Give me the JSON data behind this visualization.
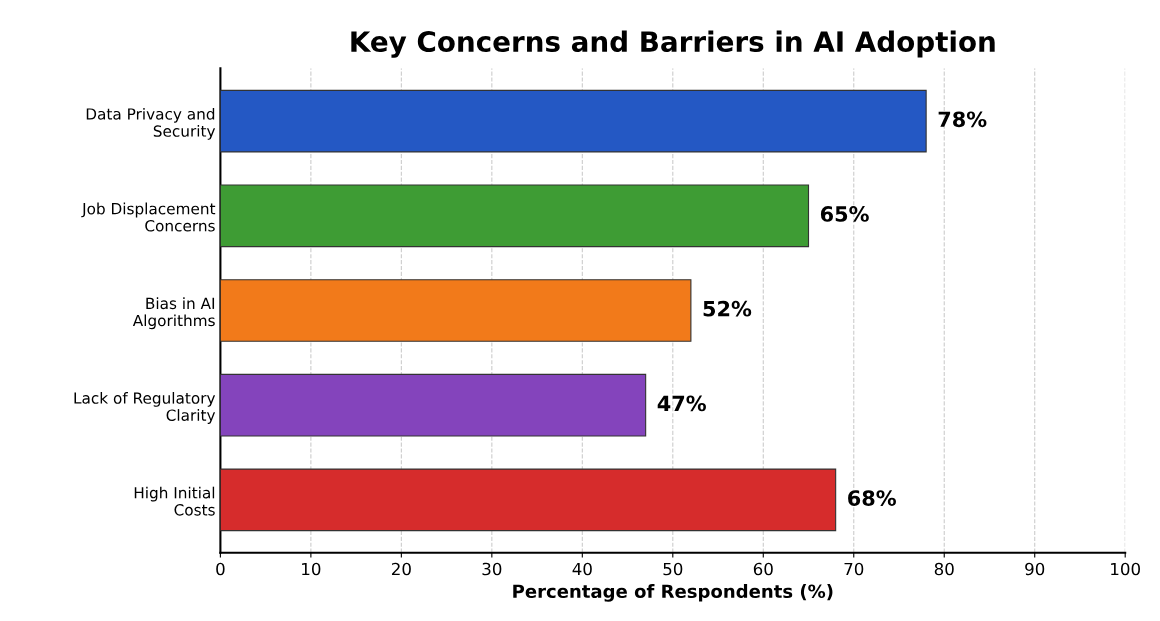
{
  "chart_data": {
    "type": "bar",
    "orientation": "horizontal",
    "title": "Key Concerns and Barriers in AI Adoption",
    "xlabel": "Percentage of Respondents (%)",
    "categories": [
      "Data Privacy and\nSecurity",
      "Job Displacement\nConcerns",
      "Bias in AI\nAlgorithms",
      "Lack of Regulatory\nClarity",
      "High Initial\nCosts"
    ],
    "values": [
      78,
      65,
      52,
      47,
      68
    ],
    "value_labels": [
      "78%",
      "65%",
      "52%",
      "47%",
      "68%"
    ],
    "colors": [
      "#2458c4",
      "#3e9c34",
      "#f27a1a",
      "#8444bc",
      "#d62c2c"
    ],
    "xlim": [
      0,
      100
    ],
    "xticks": [
      0,
      10,
      20,
      30,
      40,
      50,
      60,
      70,
      80,
      90,
      100
    ],
    "grid": "x"
  }
}
